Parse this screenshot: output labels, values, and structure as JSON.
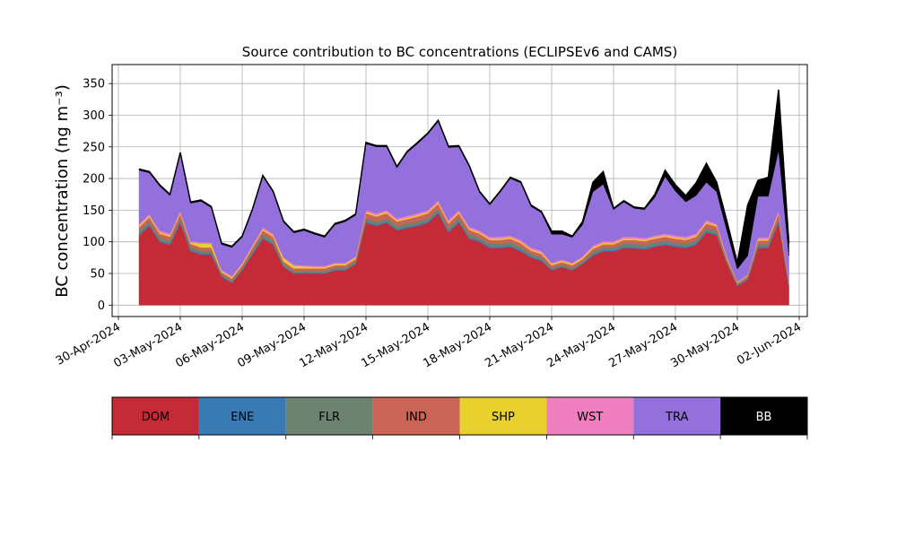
{
  "chart_data": {
    "type": "area",
    "stacked": true,
    "title": "Source contribution to BC concentrations (ECLIPSEv6 and CAMS)",
    "ylabel": "BC concentration",
    "ylabel_unit": "(ng m⁻³)",
    "xlabel": "",
    "xlim": [
      "2024-04-30T00:00",
      "2024-06-02T00:00"
    ],
    "ylim": [
      -18,
      380
    ],
    "grid": true,
    "x_ticks": [
      "30-Apr-2024",
      "03-May-2024",
      "06-May-2024",
      "09-May-2024",
      "12-May-2024",
      "15-May-2024",
      "18-May-2024",
      "21-May-2024",
      "24-May-2024",
      "27-May-2024",
      "30-May-2024",
      "02-Jun-2024"
    ],
    "x_tick_dates": [
      "2024-04-30",
      "2024-05-03",
      "2024-05-06",
      "2024-05-09",
      "2024-05-12",
      "2024-05-15",
      "2024-05-18",
      "2024-05-21",
      "2024-05-24",
      "2024-05-27",
      "2024-05-30",
      "2024-06-02"
    ],
    "y_ticks": [
      0,
      50,
      100,
      150,
      200,
      250,
      300,
      350
    ],
    "x": [
      "2024-05-01T00:00",
      "2024-05-01T12:00",
      "2024-05-02T00:00",
      "2024-05-02T12:00",
      "2024-05-03T00:00",
      "2024-05-03T12:00",
      "2024-05-04T00:00",
      "2024-05-04T12:00",
      "2024-05-05T00:00",
      "2024-05-05T12:00",
      "2024-05-06T00:00",
      "2024-05-06T12:00",
      "2024-05-07T00:00",
      "2024-05-07T12:00",
      "2024-05-08T00:00",
      "2024-05-08T12:00",
      "2024-05-09T00:00",
      "2024-05-09T12:00",
      "2024-05-10T00:00",
      "2024-05-10T12:00",
      "2024-05-11T00:00",
      "2024-05-11T12:00",
      "2024-05-12T00:00",
      "2024-05-12T12:00",
      "2024-05-13T00:00",
      "2024-05-13T12:00",
      "2024-05-14T00:00",
      "2024-05-14T12:00",
      "2024-05-15T00:00",
      "2024-05-15T12:00",
      "2024-05-16T00:00",
      "2024-05-16T12:00",
      "2024-05-17T00:00",
      "2024-05-17T12:00",
      "2024-05-18T00:00",
      "2024-05-18T12:00",
      "2024-05-19T00:00",
      "2024-05-19T12:00",
      "2024-05-20T00:00",
      "2024-05-20T12:00",
      "2024-05-21T00:00",
      "2024-05-21T12:00",
      "2024-05-22T00:00",
      "2024-05-22T12:00",
      "2024-05-23T00:00",
      "2024-05-23T12:00",
      "2024-05-24T00:00",
      "2024-05-24T12:00",
      "2024-05-25T00:00",
      "2024-05-25T12:00",
      "2024-05-26T00:00",
      "2024-05-26T12:00",
      "2024-05-27T00:00",
      "2024-05-27T12:00",
      "2024-05-28T00:00",
      "2024-05-28T12:00",
      "2024-05-29T00:00",
      "2024-05-29T12:00",
      "2024-05-30T00:00",
      "2024-05-30T12:00",
      "2024-05-31T00:00",
      "2024-05-31T12:00",
      "2024-06-01T00:00",
      "2024-06-01T12:00"
    ],
    "series": [
      {
        "name": "DOM",
        "color": "#c52a37",
        "values": [
          110,
          125,
          100,
          95,
          130,
          85,
          80,
          80,
          45,
          35,
          55,
          80,
          105,
          95,
          60,
          50,
          50,
          50,
          50,
          55,
          55,
          65,
          130,
          125,
          130,
          118,
          122,
          125,
          130,
          145,
          115,
          130,
          105,
          100,
          90,
          90,
          92,
          85,
          75,
          70,
          55,
          60,
          55,
          65,
          78,
          85,
          85,
          90,
          90,
          88,
          92,
          95,
          92,
          90,
          95,
          115,
          110,
          65,
          30,
          40,
          90,
          90,
          130,
          28
        ]
      },
      {
        "name": "ENE",
        "color": "#3a7ab4",
        "values": [
          2,
          2,
          2,
          2,
          2,
          2,
          2,
          2,
          1,
          1,
          1,
          2,
          2,
          2,
          1,
          1,
          1,
          1,
          1,
          1,
          1,
          1,
          2,
          2,
          2,
          2,
          2,
          2,
          2,
          2,
          2,
          2,
          2,
          2,
          2,
          2,
          2,
          2,
          2,
          2,
          1,
          1,
          1,
          1,
          2,
          2,
          2,
          2,
          2,
          2,
          2,
          2,
          2,
          2,
          2,
          2,
          2,
          1,
          1,
          1,
          2,
          2,
          2,
          1
        ]
      },
      {
        "name": "FLR",
        "color": "#6e8271",
        "values": [
          5,
          5,
          5,
          5,
          5,
          5,
          4,
          4,
          3,
          3,
          3,
          4,
          5,
          5,
          4,
          3,
          3,
          3,
          3,
          3,
          3,
          3,
          5,
          5,
          5,
          5,
          5,
          5,
          5,
          5,
          5,
          5,
          5,
          5,
          5,
          5,
          5,
          5,
          4,
          4,
          3,
          3,
          3,
          3,
          4,
          4,
          4,
          5,
          5,
          5,
          5,
          5,
          5,
          5,
          5,
          5,
          5,
          3,
          2,
          2,
          4,
          4,
          5,
          3
        ]
      },
      {
        "name": "IND",
        "color": "#c96456",
        "values": [
          6,
          7,
          6,
          6,
          7,
          5,
          5,
          5,
          3,
          3,
          4,
          5,
          6,
          6,
          4,
          4,
          4,
          4,
          4,
          4,
          4,
          4,
          8,
          8,
          8,
          7,
          7,
          8,
          8,
          8,
          7,
          8,
          7,
          6,
          6,
          6,
          6,
          6,
          5,
          5,
          4,
          4,
          4,
          4,
          5,
          5,
          5,
          6,
          6,
          6,
          6,
          6,
          6,
          6,
          6,
          7,
          7,
          4,
          2,
          3,
          6,
          6,
          8,
          3
        ]
      },
      {
        "name": "SHP",
        "color": "#e8d12e",
        "values": [
          2,
          2,
          2,
          2,
          2,
          2,
          6,
          6,
          2,
          2,
          2,
          2,
          2,
          2,
          5,
          4,
          3,
          2,
          2,
          2,
          2,
          2,
          2,
          2,
          2,
          2,
          2,
          2,
          2,
          2,
          2,
          2,
          2,
          2,
          2,
          2,
          2,
          2,
          2,
          2,
          2,
          2,
          2,
          2,
          2,
          2,
          2,
          2,
          2,
          2,
          2,
          2,
          2,
          2,
          2,
          2,
          2,
          2,
          1,
          1,
          2,
          2,
          2,
          1
        ]
      },
      {
        "name": "WST",
        "color": "#f07fbf",
        "values": [
          3,
          3,
          3,
          3,
          3,
          2,
          2,
          2,
          2,
          2,
          2,
          2,
          3,
          3,
          2,
          2,
          2,
          2,
          2,
          2,
          2,
          2,
          3,
          3,
          3,
          3,
          3,
          3,
          3,
          3,
          3,
          3,
          3,
          3,
          3,
          3,
          3,
          3,
          3,
          3,
          2,
          2,
          2,
          2,
          3,
          3,
          3,
          3,
          3,
          3,
          3,
          3,
          3,
          3,
          3,
          3,
          3,
          2,
          1,
          1,
          3,
          3,
          3,
          2
        ]
      },
      {
        "name": "TRA",
        "color": "#9370db",
        "values": [
          85,
          65,
          70,
          60,
          90,
          60,
          65,
          55,
          40,
          45,
          40,
          55,
          80,
          65,
          55,
          50,
          55,
          50,
          45,
          60,
          65,
          65,
          105,
          105,
          100,
          80,
          100,
          110,
          120,
          125,
          115,
          100,
          95,
          60,
          50,
          70,
          90,
          90,
          65,
          60,
          45,
          40,
          40,
          50,
          85,
          90,
          50,
          55,
          45,
          45,
          60,
          90,
          70,
          55,
          60,
          60,
          50,
          40,
          20,
          30,
          65,
          65,
          95,
          40
        ]
      },
      {
        "name": "BB",
        "color": "#000000",
        "values": [
          2,
          2,
          2,
          2,
          2,
          2,
          2,
          2,
          2,
          2,
          2,
          2,
          2,
          2,
          2,
          2,
          2,
          2,
          2,
          2,
          2,
          2,
          2,
          2,
          2,
          2,
          2,
          2,
          2,
          2,
          2,
          2,
          2,
          2,
          2,
          2,
          2,
          2,
          2,
          2,
          5,
          5,
          2,
          5,
          15,
          20,
          2,
          2,
          2,
          2,
          5,
          10,
          10,
          10,
          20,
          30,
          15,
          15,
          10,
          80,
          25,
          30,
          95,
          20
        ]
      }
    ],
    "legend": {
      "placement": "bottom",
      "entries": [
        {
          "label": "DOM",
          "color": "#c52a37",
          "text_color": "#000000"
        },
        {
          "label": "ENE",
          "color": "#3a7ab4",
          "text_color": "#000000"
        },
        {
          "label": "FLR",
          "color": "#6e8271",
          "text_color": "#000000"
        },
        {
          "label": "IND",
          "color": "#c96456",
          "text_color": "#000000"
        },
        {
          "label": "SHP",
          "color": "#e8d12e",
          "text_color": "#000000"
        },
        {
          "label": "WST",
          "color": "#f07fbf",
          "text_color": "#000000"
        },
        {
          "label": "TRA",
          "color": "#9370db",
          "text_color": "#000000"
        },
        {
          "label": "BB",
          "color": "#000000",
          "text_color": "#ffffff"
        }
      ]
    }
  }
}
